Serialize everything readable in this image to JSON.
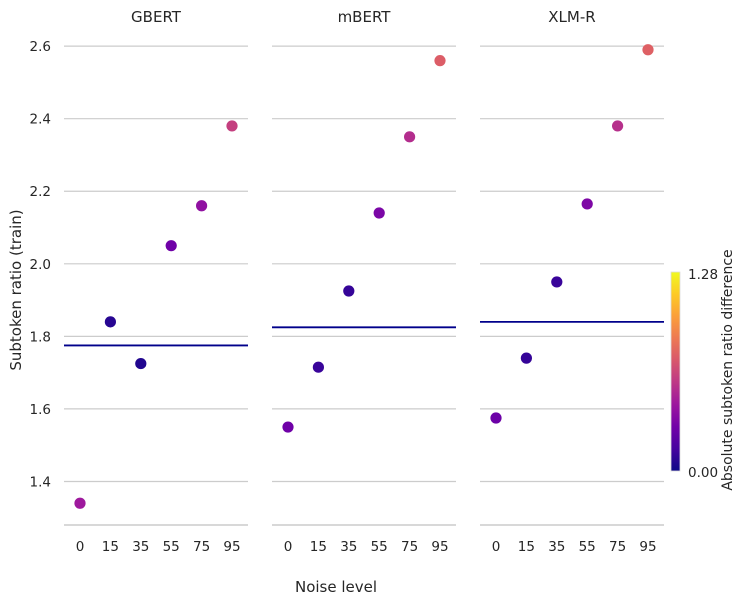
{
  "chart_data": {
    "type": "scatter",
    "ylabel": "Subtoken ratio (train)",
    "xlabel": "Noise level",
    "categories": [
      "0",
      "15",
      "35",
      "55",
      "75",
      "95"
    ],
    "ylim": [
      1.28,
      2.65
    ],
    "yticks": [
      "1.4",
      "1.6",
      "1.8",
      "2.0",
      "2.2",
      "2.4",
      "2.6"
    ],
    "grid": "horizontal",
    "colorbar": {
      "label": "Absolute subtoken ratio difference",
      "min_label": "0.00",
      "max_label": "1.28",
      "min": 0,
      "max": 1.28,
      "colormap": "plasma"
    },
    "panels": [
      {
        "title": "GBERT",
        "baseline": 1.775,
        "values": [
          1.34,
          1.84,
          1.725,
          2.05,
          2.16,
          2.38
        ]
      },
      {
        "title": "mBERT",
        "baseline": 1.825,
        "values": [
          1.55,
          1.715,
          1.925,
          2.14,
          2.35,
          2.56
        ]
      },
      {
        "title": "XLM-R",
        "baseline": 1.84,
        "values": [
          1.575,
          1.74,
          1.95,
          2.165,
          2.38,
          2.59
        ]
      }
    ],
    "colors": {
      "baseline": "#00008b",
      "grid": "#cccccc",
      "colormap_stops": [
        "#0d0887",
        "#46039f",
        "#7201a8",
        "#9c179e",
        "#bd3786",
        "#d8576b",
        "#ed7953",
        "#fb9f3a",
        "#fdca26",
        "#f0f921"
      ]
    }
  }
}
